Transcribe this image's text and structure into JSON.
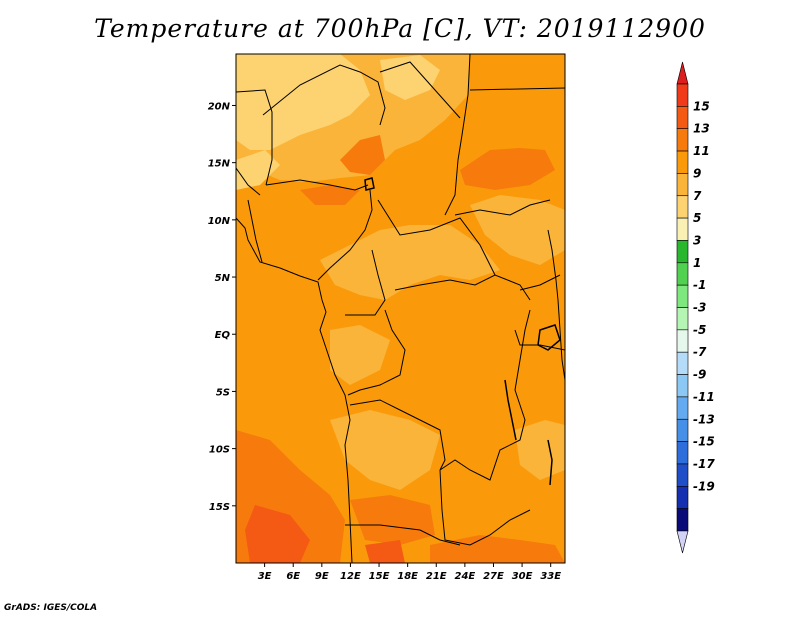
{
  "title": "Temperature at 700hPa [C], VT: 2019112900",
  "credit": "GrADS: IGES/COLA",
  "map": {
    "region": "Central Africa",
    "variable": "Temperature at 700hPa",
    "units": "C",
    "valid_time": "2019112900",
    "lon_range": [
      0,
      34.5
    ],
    "lat_range": [
      -20,
      24.5
    ],
    "lon_ticks": [
      "3E",
      "6E",
      "9E",
      "12E",
      "15E",
      "18E",
      "21E",
      "24E",
      "27E",
      "30E",
      "33E"
    ],
    "lat_ticks": [
      "20N",
      "15N",
      "10N",
      "5N",
      "EQ",
      "5S",
      "10S",
      "15S"
    ]
  },
  "colorbar": {
    "labels": [
      "15",
      "13",
      "11",
      "9",
      "7",
      "5",
      "3",
      "1",
      "-1",
      "-3",
      "-5",
      "-7",
      "-9",
      "-11",
      "-13",
      "-15",
      "-17",
      "-19"
    ],
    "colors": [
      "#f03a1a",
      "#f45a14",
      "#f77a0c",
      "#fa9a0a",
      "#fbb43a",
      "#fdd270",
      "#faf0b4",
      "#29b72e",
      "#50d250",
      "#7ee87e",
      "#b4f5b4",
      "#e6f8ec",
      "#b4dcf8",
      "#8cc8f4",
      "#64aaf0",
      "#4690e8",
      "#2d6edc",
      "#1e4ec8",
      "#142fb0",
      "#0a0a78"
    ],
    "top_arrow_color": "#dc1e1e",
    "bottom_arrow_color": "#d2d2f5"
  }
}
